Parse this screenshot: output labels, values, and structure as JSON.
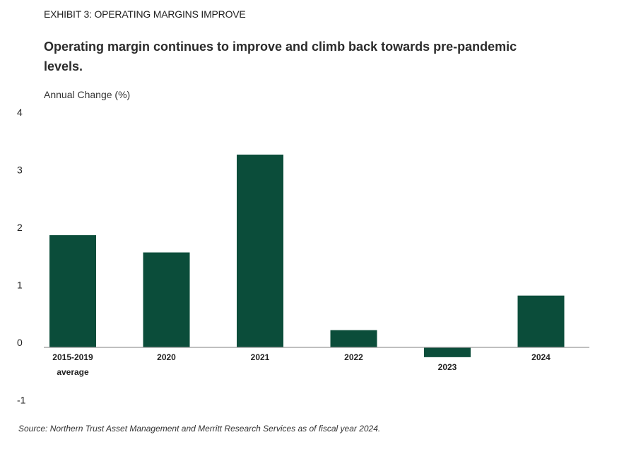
{
  "exhibit_label": "EXHIBIT 3: OPERATING MARGINS IMPROVE",
  "headline": "Operating margin continues to improve and climb back towards pre-pandemic levels.",
  "source": "Source: Northern Trust Asset Management and Merritt Research Services as of fiscal year 2024.",
  "colors": {
    "bar": "#0b4d3a",
    "axis": "#999999"
  },
  "chart_data": {
    "type": "bar",
    "title": "",
    "ylabel": "Annual Change (%)",
    "xlabel": "",
    "ylim": [
      -1,
      4
    ],
    "yticks": [
      4,
      3,
      2,
      1,
      0,
      -1
    ],
    "grid": false,
    "categories": [
      [
        "2015-2019",
        "average"
      ],
      [
        "2020"
      ],
      [
        "2021"
      ],
      [
        "2022"
      ],
      [
        "2023"
      ],
      [
        "2024"
      ]
    ],
    "values": [
      1.95,
      1.65,
      3.35,
      0.3,
      -0.17,
      0.9
    ]
  }
}
